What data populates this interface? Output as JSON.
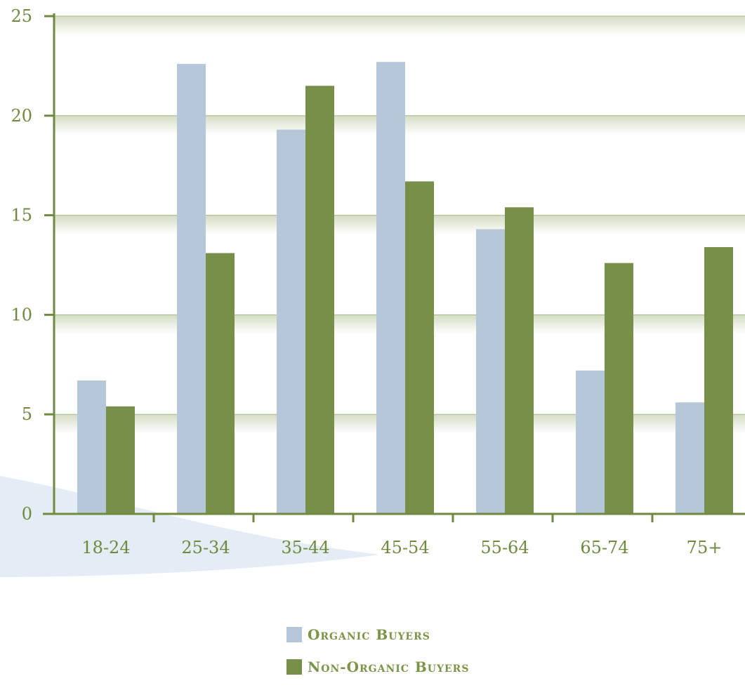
{
  "chart_data": {
    "type": "bar",
    "title": "",
    "xlabel": "",
    "ylabel": "",
    "categories": [
      "18-24",
      "25-34",
      "35-44",
      "45-54",
      "55-64",
      "65-74",
      "75+"
    ],
    "series": [
      {
        "name": "Organic Buyers",
        "color": "#b5c7d8",
        "values": [
          6.7,
          22.6,
          19.3,
          22.7,
          14.3,
          7.2,
          5.6
        ]
      },
      {
        "name": "Non-Organic Buyers",
        "color": "#788f4a",
        "values": [
          5.4,
          13.1,
          21.5,
          16.7,
          15.4,
          12.6,
          13.4
        ]
      }
    ],
    "ylim": [
      0,
      25
    ],
    "yticks": [
      "0",
      "5",
      "10",
      "15",
      "20",
      "25"
    ],
    "grid": true,
    "legend_position": "bottom",
    "colors": {
      "axis": "#6f8a3f",
      "text": "#6f8a3f",
      "band_top": "#d4ddc5",
      "band_bottom": "#ffffff",
      "swoosh": "#e4edf5"
    }
  }
}
